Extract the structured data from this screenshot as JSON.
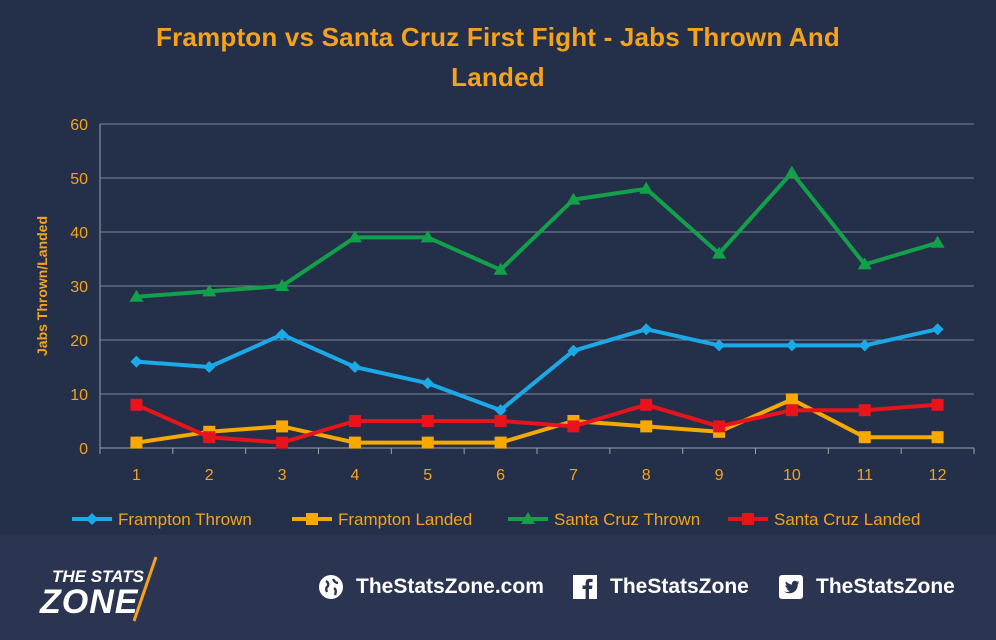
{
  "chart_data": {
    "type": "line",
    "title_line1": "Frampton vs Santa Cruz First Fight - Jabs Thrown And",
    "title_line2": "Landed",
    "ylabel": "Jabs Thrown/Landed",
    "xlabel": "",
    "categories": [
      "1",
      "2",
      "3",
      "4",
      "5",
      "6",
      "7",
      "8",
      "9",
      "10",
      "11",
      "12"
    ],
    "ylim": [
      0,
      60
    ],
    "yticks": [
      0,
      10,
      20,
      30,
      40,
      50,
      60
    ],
    "grid": true,
    "legend_position": "bottom",
    "series": [
      {
        "name": "Frampton Thrown",
        "color": "#1ba9e8",
        "marker": "diamond",
        "values": [
          16,
          15,
          21,
          15,
          12,
          7,
          18,
          22,
          19,
          19,
          19,
          22
        ]
      },
      {
        "name": "Frampton Landed",
        "color": "#f7a900",
        "marker": "square",
        "values": [
          1,
          3,
          4,
          1,
          1,
          1,
          5,
          4,
          3,
          9,
          2,
          2
        ]
      },
      {
        "name": "Santa Cruz Thrown",
        "color": "#12a04a",
        "marker": "triangle",
        "values": [
          28,
          29,
          30,
          39,
          39,
          33,
          46,
          48,
          36,
          51,
          34,
          38
        ]
      },
      {
        "name": "Santa Cruz Landed",
        "color": "#e8141c",
        "marker": "square",
        "values": [
          8,
          2,
          1,
          5,
          5,
          5,
          4,
          8,
          4,
          7,
          7,
          8
        ]
      }
    ]
  },
  "footer": {
    "logo_top": "THE STATS",
    "logo_bottom": "ZONE",
    "website": "TheStatsZone.com",
    "facebook": "TheStatsZone",
    "twitter": "TheStatsZone"
  },
  "icons": {
    "website": "globe-icon",
    "facebook": "facebook-icon",
    "twitter": "twitter-icon"
  }
}
